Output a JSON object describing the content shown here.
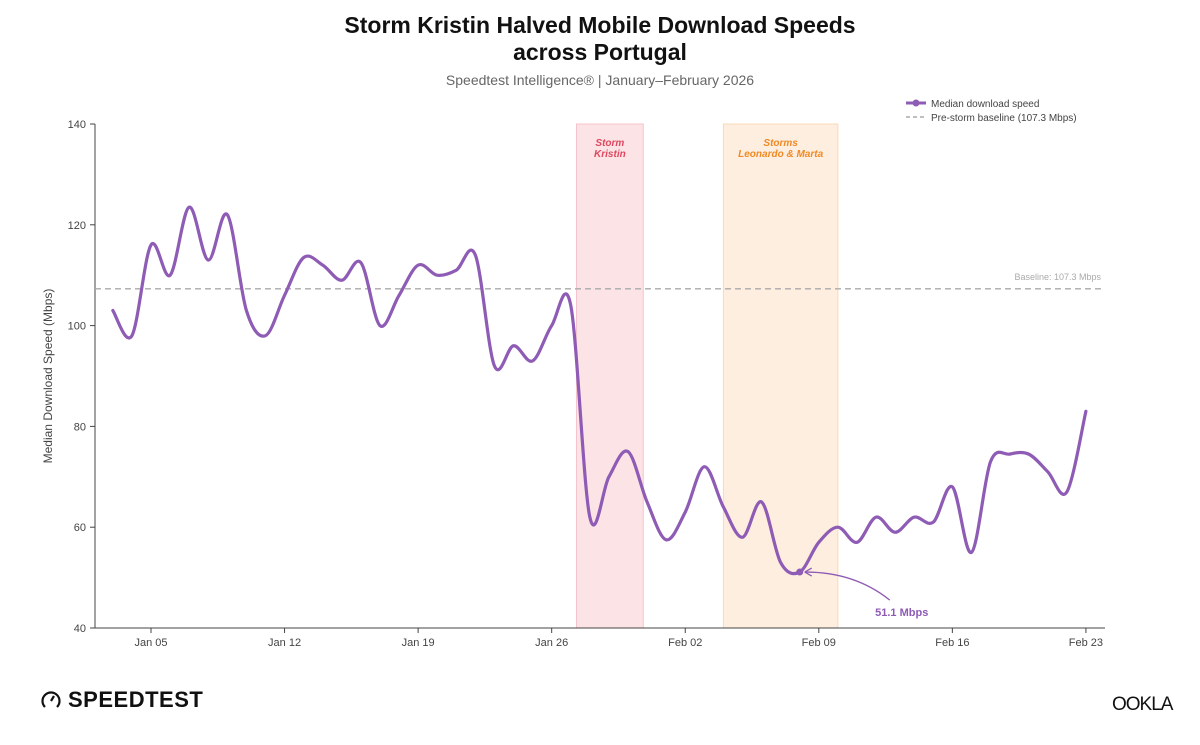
{
  "chart_data": {
    "type": "line",
    "title_line1": "Storm Kristin Halved Mobile Download Speeds",
    "title_line2": "across Portugal",
    "subtitle": "Speedtest Intelligence®  |  January–February 2026",
    "ylabel": "Median Download Speed (Mbps)",
    "xlabel": "",
    "ylim": [
      40,
      140
    ],
    "yticks": [
      40,
      60,
      80,
      100,
      120,
      140
    ],
    "x_unit": "day of year 2026",
    "xlim": [
      2,
      55
    ],
    "xticks": [
      {
        "x": 5,
        "label": "Jan 05"
      },
      {
        "x": 12,
        "label": "Jan 12"
      },
      {
        "x": 19,
        "label": "Jan 19"
      },
      {
        "x": 26,
        "label": "Jan 26"
      },
      {
        "x": 33,
        "label": "Feb 02"
      },
      {
        "x": 40,
        "label": "Feb 09"
      },
      {
        "x": 47,
        "label": "Feb 16"
      },
      {
        "x": 54,
        "label": "Feb 23"
      }
    ],
    "series": [
      {
        "name": "Median download speed",
        "color": "#8e5bb5",
        "x_start": 3,
        "values": [
          103,
          98,
          116,
          110,
          123.5,
          113,
          122,
          103,
          98,
          106,
          113.5,
          112,
          109,
          112.5,
          100,
          106,
          112,
          110,
          111,
          114,
          92,
          96,
          93,
          100,
          104,
          62,
          70,
          75,
          65,
          57.5,
          63,
          72,
          64,
          58,
          65,
          53,
          51.1,
          57,
          60,
          57,
          62,
          59,
          62,
          61,
          68,
          55,
          73,
          74.5,
          74.5,
          71,
          67,
          83
        ]
      }
    ],
    "baseline": {
      "value": 107.3,
      "legend": "Pre-storm baseline (107.3 Mbps)",
      "label": "Baseline: 107.3 Mbps",
      "color": "#aaaaaa"
    },
    "storms": [
      {
        "line1": "Storm",
        "line2": "Kristin",
        "start": 27.3,
        "end": 30.8,
        "fill": "#fbe3e6",
        "edge": "#f6c4cb",
        "text_color": "#e0475e"
      },
      {
        "line1": "Storms",
        "line2": "Leonardo & Marta",
        "start": 35,
        "end": 41,
        "fill": "#fdeee0",
        "edge": "#fbd9b8",
        "text_color": "#f08a24"
      }
    ],
    "annotation": {
      "x": 39,
      "value": 51.1,
      "label": "51.1 Mbps"
    },
    "legend_position": "top-right",
    "grid": false
  },
  "branding": {
    "left": "SPEEDTEST",
    "right": "OOKLA"
  }
}
